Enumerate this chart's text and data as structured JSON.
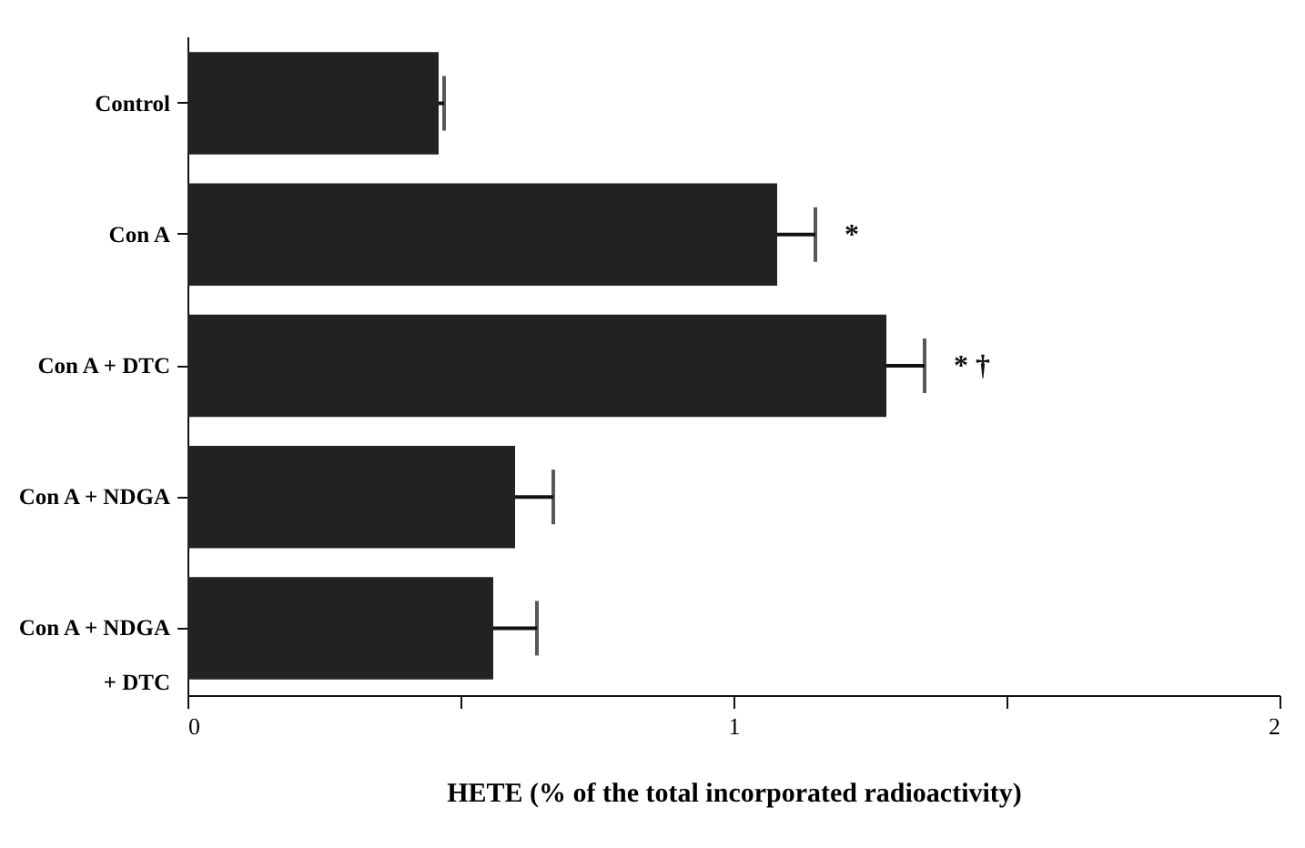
{
  "chart_data": {
    "type": "bar",
    "orientation": "horizontal",
    "xlabel": "HETE (% of the total incorporated radioactivity)",
    "categories": [
      "Control",
      "Con A",
      "Con A + DTC",
      "Con A + NDGA",
      "Con A + NDGA\n+ DTC"
    ],
    "values": [
      0.46,
      1.08,
      1.28,
      0.6,
      0.56
    ],
    "errors": [
      [
        0.46,
        0.47
      ],
      [
        1.08,
        1.15
      ],
      [
        1.28,
        1.35
      ],
      [
        0.6,
        0.67
      ],
      [
        0.56,
        0.64
      ]
    ],
    "color": "#222222",
    "xlim": [
      0,
      2
    ],
    "xticks": [
      0,
      {
        "value": 0.5,
        "label": null
      },
      1,
      {
        "value": 1.5,
        "label": null
      },
      2
    ],
    "grid": false,
    "annotations": [
      {
        "text": "*",
        "x": 1.15,
        "y": "Con A"
      },
      {
        "text": "* †",
        "x": 1.35,
        "y": "Con A + DTC"
      }
    ]
  }
}
